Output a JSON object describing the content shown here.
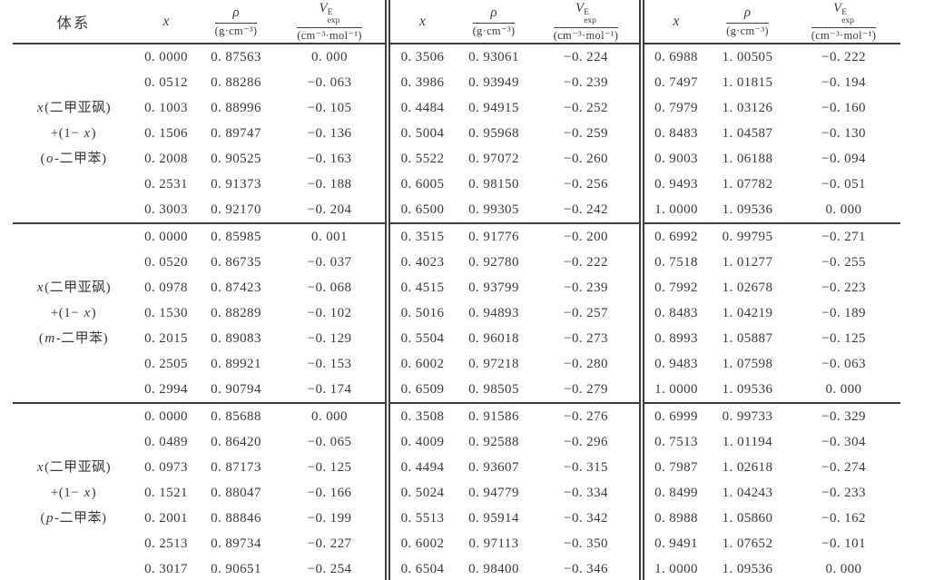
{
  "page": {
    "background": "#ffffff",
    "text_color": "#3b3b3b",
    "line_color": "#3f3f3f"
  },
  "table": {
    "headers": {
      "system": "体系",
      "x": "x",
      "rho_symbol": "ρ",
      "rho_unit": "(g·cm⁻³)",
      "v_symbol": "V",
      "v_sup": "E",
      "v_sub": "exp",
      "v_unit": "(cm⁻³·mol⁻¹)"
    },
    "groups": [
      {
        "label_lines": [
          [
            "",
            "x",
            "(二甲亚砜)"
          ],
          [
            "+(1− ",
            "x",
            ")"
          ],
          [
            "(",
            "o",
            "-二甲苯)"
          ]
        ],
        "rows": [
          [
            "0. 0000",
            "0. 87563",
            "0. 000",
            "0. 3506",
            "0. 93061",
            "−0. 224",
            "0. 6988",
            "1. 00505",
            "−0. 222"
          ],
          [
            "0. 0512",
            "0. 88286",
            "−0. 063",
            "0. 3986",
            "0. 93949",
            "−0. 239",
            "0. 7497",
            "1. 01815",
            "−0. 194"
          ],
          [
            "0. 1003",
            "0. 88996",
            "−0. 105",
            "0. 4484",
            "0. 94915",
            "−0. 252",
            "0. 7979",
            "1. 03126",
            "−0. 160"
          ],
          [
            "0. 1506",
            "0. 89747",
            "−0. 136",
            "0. 5004",
            "0. 95968",
            "−0. 259",
            "0. 8483",
            "1. 04587",
            "−0. 130"
          ],
          [
            "0. 2008",
            "0. 90525",
            "−0. 163",
            "0. 5522",
            "0. 97072",
            "−0. 260",
            "0. 9003",
            "1. 06188",
            "−0. 094"
          ],
          [
            "0. 2531",
            "0. 91373",
            "−0. 188",
            "0. 6005",
            "0. 98150",
            "−0. 256",
            "0. 9493",
            "1. 07782",
            "−0. 051"
          ],
          [
            "0. 3003",
            "0. 92170",
            "−0. 204",
            "0. 6500",
            "0. 99305",
            "−0. 242",
            "1. 0000",
            "1. 09536",
            "0. 000"
          ]
        ]
      },
      {
        "label_lines": [
          [
            "",
            "x",
            "(二甲亚砜)"
          ],
          [
            "+(1− ",
            "x",
            ")"
          ],
          [
            "(",
            "m",
            "-二甲苯)"
          ]
        ],
        "rows": [
          [
            "0. 0000",
            "0. 85985",
            "0. 001",
            "0. 3515",
            "0. 91776",
            "−0. 200",
            "0. 6992",
            "0. 99795",
            "−0. 271"
          ],
          [
            "0. 0520",
            "0. 86735",
            "−0. 037",
            "0. 4023",
            "0. 92780",
            "−0. 222",
            "0. 7518",
            "1. 01277",
            "−0. 255"
          ],
          [
            "0. 0978",
            "0. 87423",
            "−0. 068",
            "0. 4515",
            "0. 93799",
            "−0. 239",
            "0. 7992",
            "1. 02678",
            "−0. 223"
          ],
          [
            "0. 1530",
            "0. 88289",
            "−0. 102",
            "0. 5016",
            "0. 94893",
            "−0. 257",
            "0. 8483",
            "1. 04219",
            "−0. 189"
          ],
          [
            "0. 2015",
            "0. 89083",
            "−0. 129",
            "0. 5504",
            "0. 96018",
            "−0. 273",
            "0. 8993",
            "1. 05887",
            "−0. 125"
          ],
          [
            "0. 2505",
            "0. 89921",
            "−0. 153",
            "0. 6002",
            "0. 97218",
            "−0. 280",
            "0. 9483",
            "1. 07598",
            "−0. 063"
          ],
          [
            "0. 2994",
            "0. 90794",
            "−0. 174",
            "0. 6509",
            "0. 98505",
            "−0. 279",
            "1. 0000",
            "1. 09536",
            "0. 000"
          ]
        ]
      },
      {
        "label_lines": [
          [
            "",
            "x",
            "(二甲亚砜)"
          ],
          [
            "+(1− ",
            "x",
            ")"
          ],
          [
            "(",
            "p",
            "-二甲苯)"
          ]
        ],
        "rows": [
          [
            "0. 0000",
            "0. 85688",
            "0. 000",
            "0. 3508",
            "0. 91586",
            "−0. 276",
            "0. 6999",
            "0. 99733",
            "−0. 329"
          ],
          [
            "0. 0489",
            "0. 86420",
            "−0. 065",
            "0. 4009",
            "0. 92588",
            "−0. 296",
            "0. 7513",
            "1. 01194",
            "−0. 304"
          ],
          [
            "0. 0973",
            "0. 87173",
            "−0. 125",
            "0. 4494",
            "0. 93607",
            "−0. 315",
            "0. 7987",
            "1. 02618",
            "−0. 274"
          ],
          [
            "0. 1521",
            "0. 88047",
            "−0. 166",
            "0. 5024",
            "0. 94779",
            "−0. 334",
            "0. 8499",
            "1. 04243",
            "−0. 233"
          ],
          [
            "0. 2001",
            "0. 88846",
            "−0. 199",
            "0. 5513",
            "0. 95914",
            "−0. 342",
            "0. 8988",
            "1. 05860",
            "−0. 162"
          ],
          [
            "0. 2513",
            "0. 89734",
            "−0. 227",
            "0. 6002",
            "0. 97113",
            "−0. 350",
            "0. 9491",
            "1. 07652",
            "−0. 101"
          ],
          [
            "0. 3017",
            "0. 90651",
            "−0. 254",
            "0. 6504",
            "0. 98400",
            "−0. 346",
            "1. 0000",
            "1. 09536",
            "0. 000"
          ]
        ]
      }
    ]
  }
}
